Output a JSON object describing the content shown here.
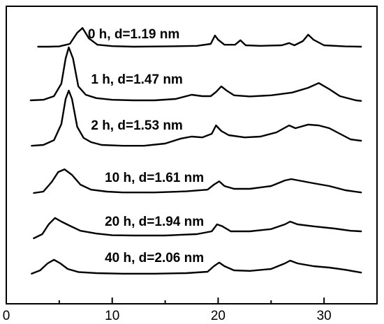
{
  "chart_data": {
    "type": "line",
    "xlim": [
      0,
      35
    ],
    "xticks": [
      "0",
      "10",
      "20",
      "30"
    ],
    "xlabel": "",
    "ylabel": "",
    "title": "",
    "legend": "none",
    "grid": false,
    "y_axis_values_shown": false,
    "series": [
      {
        "name": "0 h, d=1.19 nm",
        "offset": 5,
        "label_x": 7.7,
        "points": [
          [
            3,
            0.05
          ],
          [
            4,
            0.05
          ],
          [
            5,
            0.06
          ],
          [
            6,
            0.15
          ],
          [
            6.7,
            0.55
          ],
          [
            7.2,
            0.72
          ],
          [
            7.8,
            0.35
          ],
          [
            8.6,
            0.12
          ],
          [
            10,
            0.07
          ],
          [
            12,
            0.05
          ],
          [
            15,
            0.06
          ],
          [
            18,
            0.08
          ],
          [
            19.3,
            0.15
          ],
          [
            19.7,
            0.45
          ],
          [
            20,
            0.3
          ],
          [
            20.6,
            0.12
          ],
          [
            21.6,
            0.12
          ],
          [
            22.1,
            0.28
          ],
          [
            22.6,
            0.1
          ],
          [
            24,
            0.08
          ],
          [
            26,
            0.1
          ],
          [
            26.7,
            0.18
          ],
          [
            27.2,
            0.1
          ],
          [
            28,
            0.25
          ],
          [
            28.5,
            0.48
          ],
          [
            29,
            0.3
          ],
          [
            30,
            0.1
          ],
          [
            32,
            0.06
          ],
          [
            33.5,
            0.05
          ]
        ]
      },
      {
        "name": "1 h, d=1.47 nm",
        "offset": 4,
        "label_x": 8.0,
        "points": [
          [
            2.3,
            0.1
          ],
          [
            3.5,
            0.12
          ],
          [
            4.5,
            0.25
          ],
          [
            5.2,
            0.7
          ],
          [
            5.6,
            1.6
          ],
          [
            5.9,
            2.0
          ],
          [
            6.3,
            1.6
          ],
          [
            6.8,
            0.6
          ],
          [
            7.5,
            0.3
          ],
          [
            8.5,
            0.18
          ],
          [
            10,
            0.12
          ],
          [
            12,
            0.1
          ],
          [
            14,
            0.1
          ],
          [
            16,
            0.15
          ],
          [
            17.5,
            0.3
          ],
          [
            18.5,
            0.25
          ],
          [
            19.3,
            0.25
          ],
          [
            19.8,
            0.4
          ],
          [
            20.3,
            0.6
          ],
          [
            20.8,
            0.45
          ],
          [
            21.5,
            0.28
          ],
          [
            23,
            0.24
          ],
          [
            25,
            0.28
          ],
          [
            27,
            0.38
          ],
          [
            28.5,
            0.55
          ],
          [
            29.5,
            0.72
          ],
          [
            30.5,
            0.5
          ],
          [
            31.5,
            0.25
          ],
          [
            33,
            0.1
          ],
          [
            33.5,
            0.08
          ]
        ]
      },
      {
        "name": "2 h, d=1.53 nm",
        "offset": 3,
        "label_x": 8.0,
        "points": [
          [
            2.4,
            0.12
          ],
          [
            3.5,
            0.15
          ],
          [
            4.5,
            0.32
          ],
          [
            5.2,
            0.9
          ],
          [
            5.6,
            1.8
          ],
          [
            5.9,
            2.1
          ],
          [
            6.2,
            1.8
          ],
          [
            6.7,
            0.8
          ],
          [
            7.3,
            0.4
          ],
          [
            8,
            0.25
          ],
          [
            9,
            0.15
          ],
          [
            11,
            0.12
          ],
          [
            13,
            0.12
          ],
          [
            15,
            0.2
          ],
          [
            16.5,
            0.38
          ],
          [
            17.5,
            0.45
          ],
          [
            18.5,
            0.42
          ],
          [
            19.4,
            0.55
          ],
          [
            19.8,
            0.85
          ],
          [
            20.3,
            0.65
          ],
          [
            21,
            0.5
          ],
          [
            22.5,
            0.42
          ],
          [
            24,
            0.45
          ],
          [
            25.5,
            0.6
          ],
          [
            26.7,
            0.85
          ],
          [
            27.3,
            0.75
          ],
          [
            28.5,
            0.88
          ],
          [
            29.5,
            0.85
          ],
          [
            30.5,
            0.75
          ],
          [
            31.5,
            0.55
          ],
          [
            32.5,
            0.35
          ],
          [
            33.5,
            0.3
          ]
        ]
      },
      {
        "name": "10 h, d=1.61 nm",
        "offset": 2,
        "label_x": 9.3,
        "points": [
          [
            2.6,
            0.1
          ],
          [
            3.5,
            0.15
          ],
          [
            4.3,
            0.5
          ],
          [
            4.9,
            0.85
          ],
          [
            5.5,
            0.95
          ],
          [
            6.2,
            0.75
          ],
          [
            7,
            0.4
          ],
          [
            8,
            0.22
          ],
          [
            9.5,
            0.15
          ],
          [
            11,
            0.12
          ],
          [
            14,
            0.12
          ],
          [
            17,
            0.16
          ],
          [
            19,
            0.22
          ],
          [
            19.6,
            0.4
          ],
          [
            20.1,
            0.52
          ],
          [
            20.6,
            0.35
          ],
          [
            21.5,
            0.25
          ],
          [
            23,
            0.25
          ],
          [
            25,
            0.35
          ],
          [
            26.3,
            0.55
          ],
          [
            26.9,
            0.6
          ],
          [
            27.6,
            0.55
          ],
          [
            29,
            0.45
          ],
          [
            30.5,
            0.35
          ],
          [
            32,
            0.2
          ],
          [
            33.5,
            0.12
          ]
        ]
      },
      {
        "name": "20 h, d=1.94 nm",
        "offset": 1,
        "label_x": 9.3,
        "points": [
          [
            2.6,
            0.05
          ],
          [
            3.4,
            0.2
          ],
          [
            4,
            0.55
          ],
          [
            4.6,
            0.78
          ],
          [
            5.2,
            0.65
          ],
          [
            6,
            0.5
          ],
          [
            7,
            0.32
          ],
          [
            8.5,
            0.22
          ],
          [
            10,
            0.16
          ],
          [
            12,
            0.15
          ],
          [
            15,
            0.15
          ],
          [
            18,
            0.2
          ],
          [
            19.4,
            0.3
          ],
          [
            19.9,
            0.55
          ],
          [
            20.4,
            0.48
          ],
          [
            21.2,
            0.3
          ],
          [
            23,
            0.3
          ],
          [
            25,
            0.38
          ],
          [
            26.3,
            0.55
          ],
          [
            26.8,
            0.65
          ],
          [
            27.5,
            0.55
          ],
          [
            29,
            0.48
          ],
          [
            31,
            0.4
          ],
          [
            32.5,
            0.32
          ],
          [
            33.5,
            0.3
          ]
        ]
      },
      {
        "name": "40 h, d=2.06 nm",
        "offset": 0,
        "label_x": 9.3,
        "points": [
          [
            2.4,
            0.08
          ],
          [
            3.2,
            0.2
          ],
          [
            3.9,
            0.45
          ],
          [
            4.5,
            0.58
          ],
          [
            5.1,
            0.45
          ],
          [
            5.8,
            0.25
          ],
          [
            6.8,
            0.14
          ],
          [
            8.5,
            0.1
          ],
          [
            11,
            0.08
          ],
          [
            14,
            0.08
          ],
          [
            17,
            0.1
          ],
          [
            19,
            0.15
          ],
          [
            19.6,
            0.35
          ],
          [
            20.1,
            0.48
          ],
          [
            20.6,
            0.35
          ],
          [
            21.5,
            0.2
          ],
          [
            23,
            0.18
          ],
          [
            25,
            0.25
          ],
          [
            26.3,
            0.45
          ],
          [
            26.8,
            0.55
          ],
          [
            27.5,
            0.45
          ],
          [
            29,
            0.35
          ],
          [
            30.5,
            0.3
          ],
          [
            32,
            0.22
          ],
          [
            33.5,
            0.12
          ]
        ]
      }
    ]
  }
}
